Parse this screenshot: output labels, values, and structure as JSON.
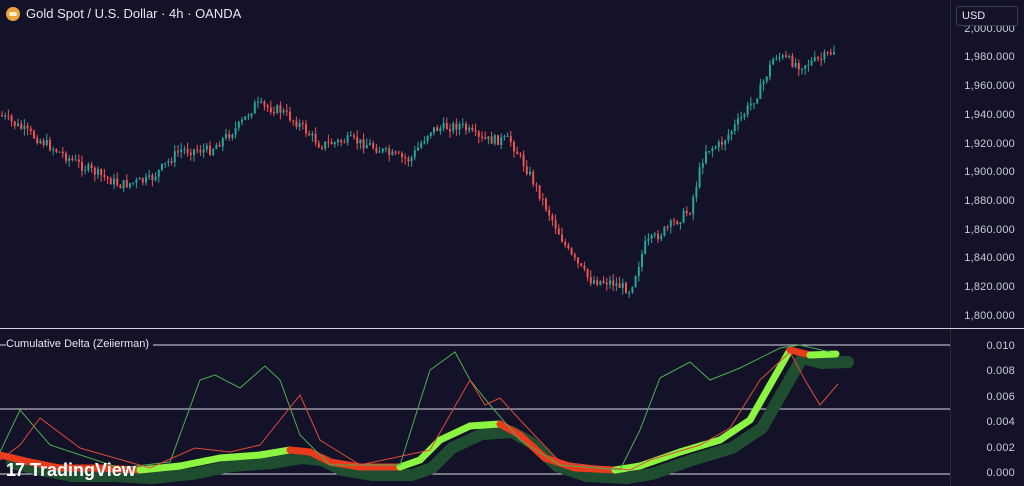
{
  "header": {
    "symbol_title": "Gold Spot / U.S. Dollar · 4h · OANDA",
    "logo_icon": "gold-bar-icon"
  },
  "currency_button": {
    "label": "USD"
  },
  "price_axis": {
    "ticks": [
      "2,000.000",
      "1,980.000",
      "1,960.000",
      "1,940.000",
      "1,920.000",
      "1,900.000",
      "1,880.000",
      "1,860.000",
      "1,840.000",
      "1,820.000",
      "1,800.000"
    ]
  },
  "indicator": {
    "label": "Cumulative Delta (Zeiierman)",
    "axis_ticks": [
      "0.010",
      "0.008",
      "0.006",
      "0.004",
      "0.002",
      "0.000"
    ],
    "ribbon_colors": {
      "bull": "#8cf542",
      "bear": "#e83a1d",
      "shadow": "#1f4d2f"
    },
    "line_colors": {
      "up": "#4caf50",
      "down": "#e04a3a"
    }
  },
  "watermark": {
    "brand": "TradingView",
    "logo_text": "17"
  },
  "colors": {
    "background": "#131228",
    "up_candle": "#26a69a",
    "down_candle": "#ef5350"
  }
}
